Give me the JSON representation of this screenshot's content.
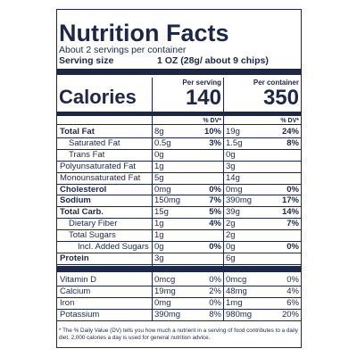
{
  "title": "Nutrition Facts",
  "servings": "About 2 servings per container",
  "serving_size": {
    "label": "Serving size",
    "value": "1 OZ (28g/ about 9 chips)"
  },
  "calories_label": "Calories",
  "columns": [
    {
      "header": "Per serving",
      "calories": "140"
    },
    {
      "header": "Per container",
      "calories": "350"
    }
  ],
  "dv_header": "% DV*",
  "nutrients": [
    {
      "name": "Total Fat",
      "bold": true,
      "indent": 0,
      "cols": [
        [
          "8g",
          "10%"
        ],
        [
          "19g",
          "24%"
        ]
      ]
    },
    {
      "name": "Saturated Fat",
      "bold": false,
      "indent": 1,
      "cols": [
        [
          "0.5g",
          "3%"
        ],
        [
          "1.5g",
          "8%"
        ]
      ]
    },
    {
      "name": "Trans Fat",
      "bold": false,
      "indent": 1,
      "cols": [
        [
          "0g"
        ],
        [
          "0g"
        ]
      ]
    },
    {
      "name": "Polyunsaturated Fat",
      "bold": false,
      "indent": 0,
      "cols": [
        [
          "1g"
        ],
        [
          "3g"
        ]
      ]
    },
    {
      "name": "Monounsaturated Fat",
      "bold": false,
      "indent": 0,
      "cols": [
        [
          "5g"
        ],
        [
          "14g"
        ]
      ]
    },
    {
      "name": "Cholesterol",
      "bold": true,
      "indent": 0,
      "cols": [
        [
          "0mg",
          "0%"
        ],
        [
          "0mg",
          "0%"
        ]
      ]
    },
    {
      "name": "Sodium",
      "bold": true,
      "indent": 0,
      "cols": [
        [
          "150mg",
          "7%"
        ],
        [
          "390mg",
          "17%"
        ]
      ]
    },
    {
      "name": "Total Carb.",
      "bold": true,
      "indent": 0,
      "cols": [
        [
          "15g",
          "5%"
        ],
        [
          "39g",
          "14%"
        ]
      ]
    },
    {
      "name": "Dietary Fiber",
      "bold": false,
      "indent": 1,
      "cols": [
        [
          "1g",
          "4%"
        ],
        [
          "2g",
          "7%"
        ]
      ]
    },
    {
      "name": "Total Sugars",
      "bold": false,
      "indent": 1,
      "cols": [
        [
          "1g"
        ],
        [
          "2g"
        ]
      ]
    },
    {
      "name": "Incl. Added Sugars",
      "bold": false,
      "indent": 2,
      "cols": [
        [
          "0g",
          "0%"
        ],
        [
          "0g",
          "0%"
        ]
      ]
    },
    {
      "name": "Protein",
      "bold": true,
      "indent": 0,
      "cols": [
        [
          "3g"
        ],
        [
          "6g"
        ]
      ]
    }
  ],
  "vitamins": [
    {
      "name": "Vitamin D",
      "cols": [
        [
          "0mcg",
          "0%"
        ],
        [
          "0mcg",
          "0%"
        ]
      ]
    },
    {
      "name": "Calcium",
      "cols": [
        [
          "19mg",
          "2%"
        ],
        [
          "48mg",
          "4%"
        ]
      ]
    },
    {
      "name": "Iron",
      "cols": [
        [
          "0mg",
          "0%"
        ],
        [
          "1mg",
          "6%"
        ]
      ]
    },
    {
      "name": "Potassium",
      "cols": [
        [
          "390mg",
          "8%"
        ],
        [
          "980mg",
          "20%"
        ]
      ]
    }
  ],
  "footnote": "* The % Daily Value (DV) tells you how much a nutrient in a serving of food contributes to a daily diet. 2,000 calories a day is used for general nutrition advice."
}
